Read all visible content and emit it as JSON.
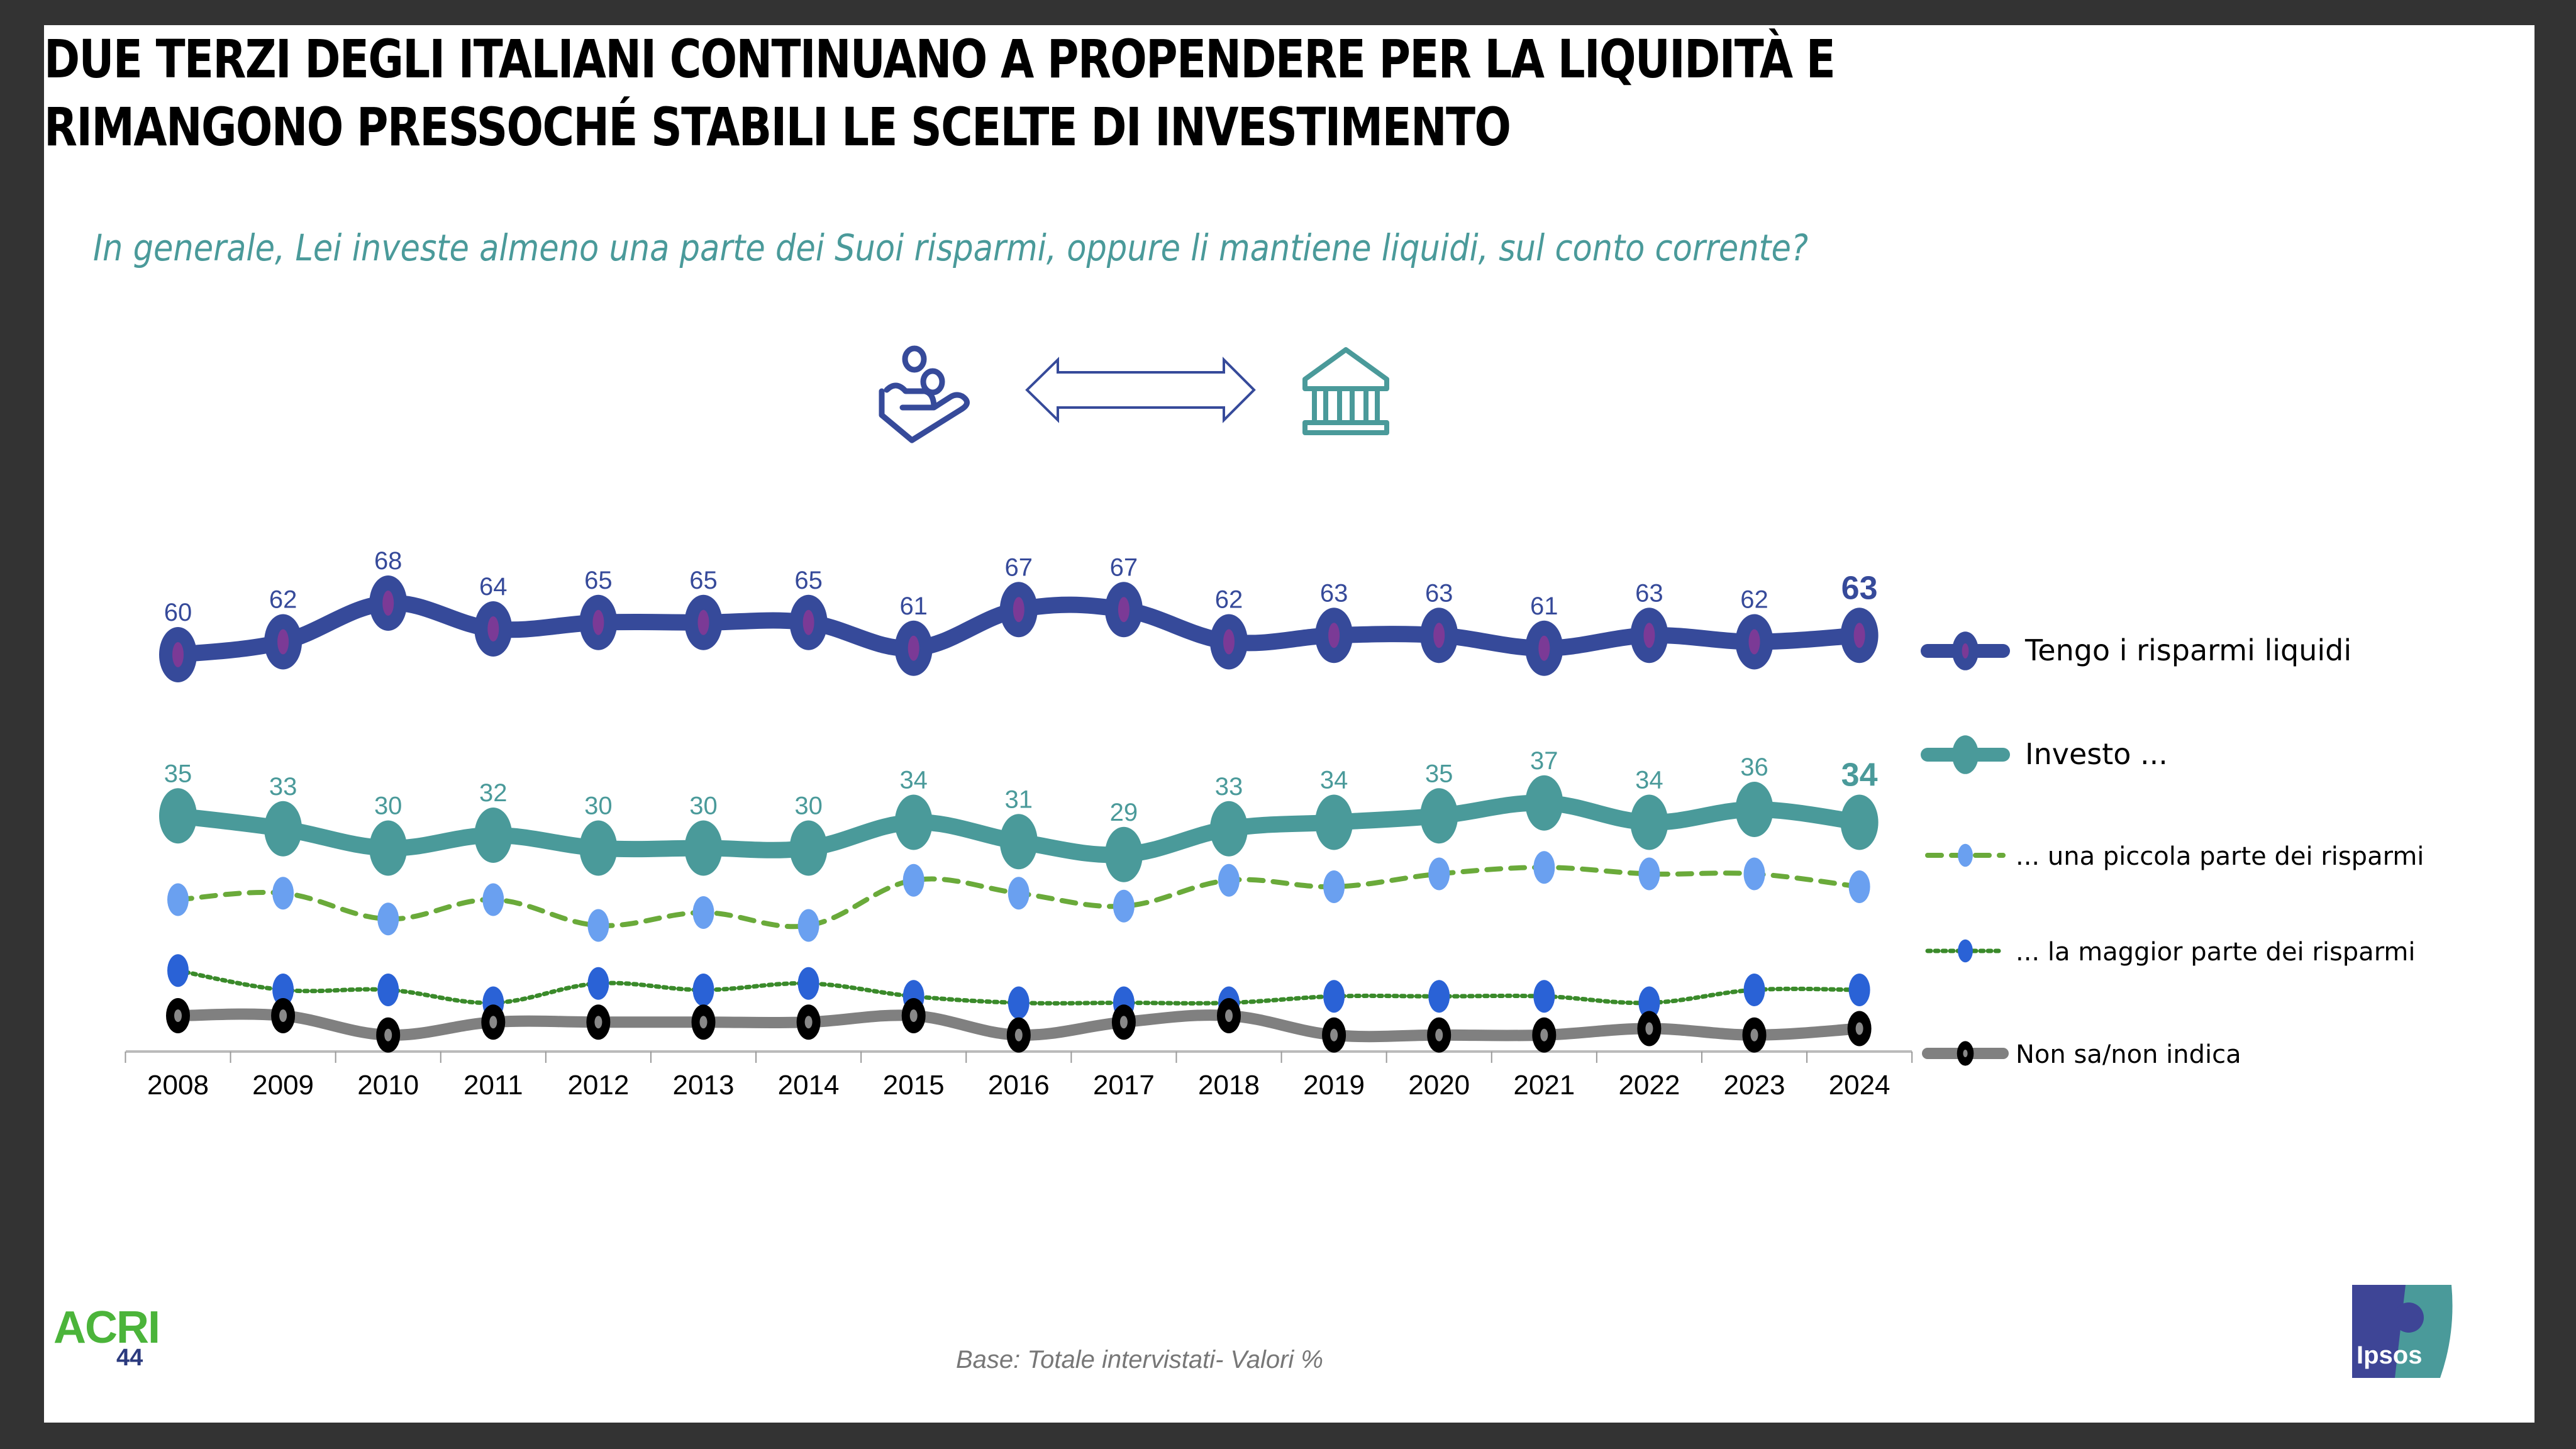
{
  "title_lines": [
    "DUE TERZI DEGLI ITALIANI CONTINUANO A PROPENDERE PER LA LIQUIDITÀ E",
    "RIMANGONO PRESSOCHÉ STABILI LE SCELTE DI INVESTIMENTO"
  ],
  "question": "In generale, Lei investe almeno una parte dei Suoi risparmi, oppure li mantiene liquidi, sul conto corrente?",
  "icons": [
    "hand-coins-icon",
    "double-arrow-icon",
    "bank-icon"
  ],
  "colors": {
    "liquid": "#364a9a",
    "liquid_marker_center": "#7b3a96",
    "invest": "#4a9a9a",
    "small_part_line": "#6aaa3a",
    "small_part_marker": "#6aa0f0",
    "most_part_line": "#3a8a2a",
    "most_part_marker": "#2a62d6",
    "dontknow_line": "#808080",
    "dontknow_marker": "#000000"
  },
  "chart_data": {
    "type": "line",
    "title": "",
    "xlabel": "",
    "ylabel": "",
    "ylim": [
      0,
      70
    ],
    "grid": false,
    "legend_position": "right",
    "x": [
      "2008",
      "2009",
      "2010",
      "2011",
      "2012",
      "2013",
      "2014",
      "2015",
      "2016",
      "2017",
      "2018",
      "2019",
      "2020",
      "2021",
      "2022",
      "2023",
      "2024"
    ],
    "series": [
      {
        "name": "Tengo i risparmi liquidi",
        "labeled": true,
        "values": [
          60,
          62,
          68,
          64,
          65,
          65,
          65,
          61,
          67,
          67,
          62,
          63,
          63,
          61,
          63,
          62,
          63
        ]
      },
      {
        "name": "Investo ...",
        "labeled": true,
        "values": [
          35,
          33,
          30,
          32,
          30,
          30,
          30,
          34,
          31,
          29,
          33,
          34,
          35,
          37,
          34,
          36,
          34
        ]
      },
      {
        "name": "... una piccola parte dei risparmi",
        "labeled": false,
        "values": [
          22,
          23,
          19,
          22,
          18,
          20,
          18,
          25,
          23,
          21,
          25,
          24,
          26,
          27,
          26,
          26,
          24
        ]
      },
      {
        "name": "... la maggior parte dei risparmi",
        "labeled": false,
        "values": [
          11,
          8,
          8,
          6,
          9,
          8,
          9,
          7,
          6,
          6,
          6,
          7,
          7,
          7,
          6,
          8,
          8
        ]
      },
      {
        "name": "Non sa/non indica",
        "labeled": false,
        "values": [
          4,
          4,
          1,
          3,
          3,
          3,
          3,
          4,
          1,
          3,
          4,
          1,
          1,
          1,
          2,
          1,
          2
        ]
      }
    ]
  },
  "footer": {
    "logo_left": "ACRI",
    "page_number": "44",
    "base_note": "Base: Totale intervistati- Valori %",
    "logo_right": "Ipsos"
  }
}
